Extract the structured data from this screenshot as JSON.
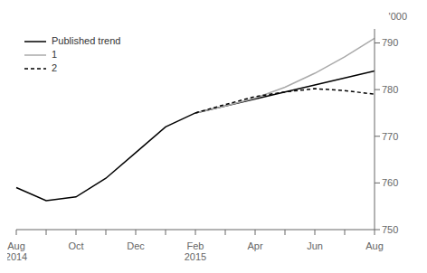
{
  "chart_data": {
    "type": "line",
    "y_label": "'000",
    "categories": [
      "Aug\n2014",
      null,
      "Oct",
      null,
      "Dec",
      null,
      "Feb\n2015",
      null,
      "Apr",
      null,
      "Jun",
      null,
      "Aug"
    ],
    "series": [
      {
        "name": "Published trend",
        "color": "#000000",
        "line_style": "solid",
        "values": [
          759.0,
          756.2,
          757.0,
          761.0,
          766.5,
          772.0,
          775.0,
          776.5,
          778.0,
          779.5,
          781.0,
          782.5,
          784.0
        ]
      },
      {
        "name": "1",
        "color": "#aaaaaa",
        "line_style": "solid",
        "values": [
          null,
          null,
          null,
          null,
          null,
          null,
          775.0,
          776.5,
          778.2,
          780.5,
          783.5,
          787.0,
          791.0
        ]
      },
      {
        "name": "2",
        "color": "#000000",
        "line_style": "dashed",
        "values": [
          null,
          null,
          null,
          null,
          null,
          null,
          775.0,
          776.8,
          778.5,
          779.5,
          780.2,
          779.8,
          779.0
        ]
      }
    ],
    "ylim": [
      750,
      793
    ],
    "yticks": [
      750,
      760,
      770,
      780,
      790
    ],
    "grid": false,
    "legend": "top left"
  }
}
